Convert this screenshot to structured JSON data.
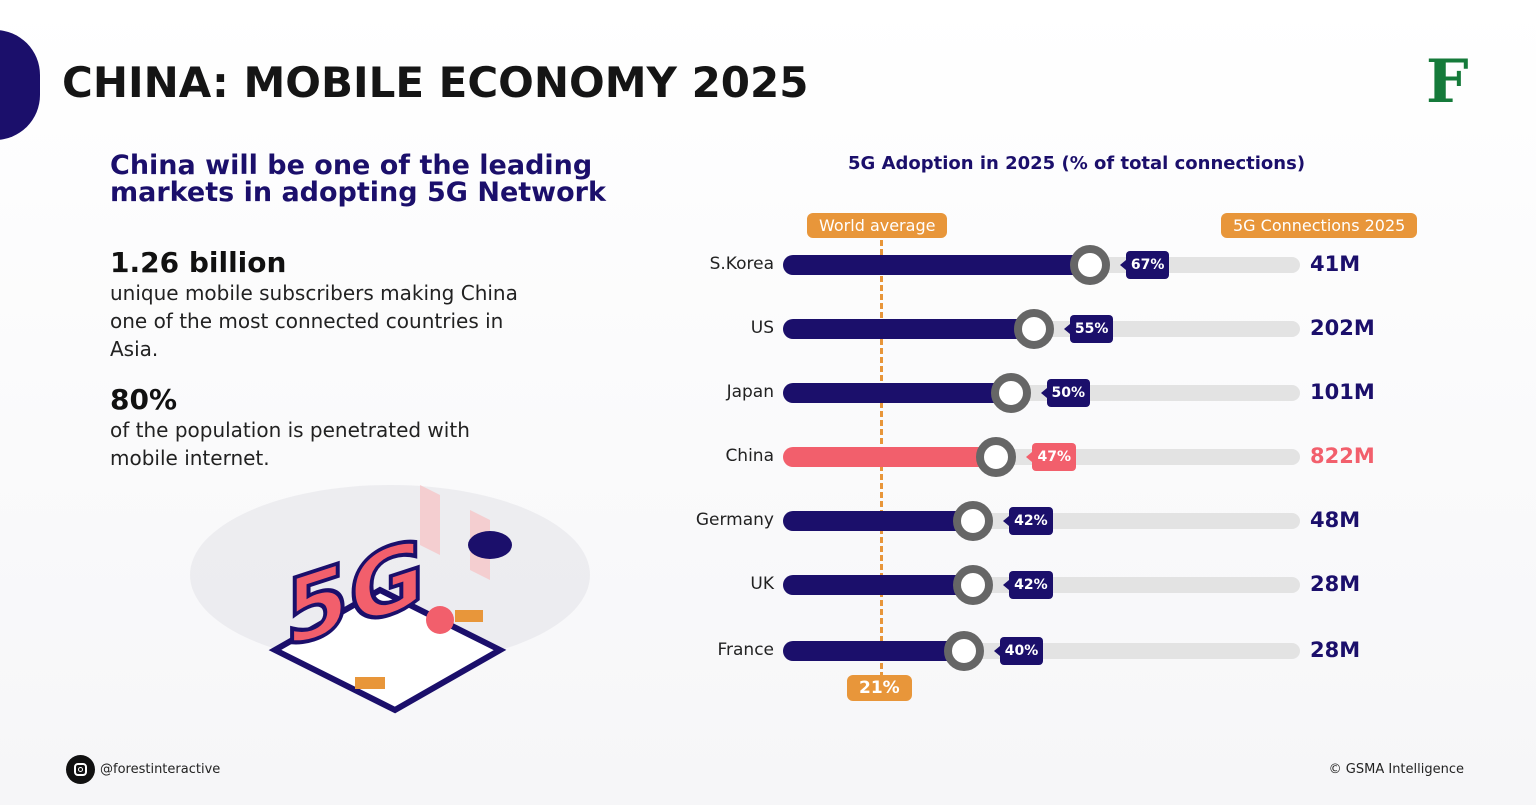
{
  "header": {
    "title": "CHINA: MOBILE ECONOMY 2025",
    "logo_text": "F"
  },
  "left": {
    "subtitle": "China will be one of the leading markets in adopting 5G Network",
    "stats": [
      {
        "value": "1.26 billion",
        "text": "unique mobile subscribers making China one of the most connected countries in Asia."
      },
      {
        "value": "80%",
        "text": "of the population is penetrated with mobile internet."
      }
    ],
    "illustration_text": "5G"
  },
  "chart_data": {
    "type": "bar",
    "title": "5G Adoption in 2025 (% of total connections)",
    "categories": [
      "S.Korea",
      "US",
      "Japan",
      "China",
      "Germany",
      "UK",
      "France"
    ],
    "values": [
      67,
      55,
      50,
      47,
      42,
      42,
      40
    ],
    "value_labels": [
      "67%",
      "55%",
      "50%",
      "47%",
      "42%",
      "42%",
      "40%"
    ],
    "connections_header": "5G Connections 2025",
    "connections": [
      "41M",
      "202M",
      "101M",
      "822M",
      "48M",
      "28M",
      "28M"
    ],
    "reference_line": {
      "label": "World average",
      "value": 21,
      "value_label": "21%"
    },
    "highlight": "China",
    "colors": {
      "bar": "#1b0f6b",
      "highlight": "#f25f6c",
      "reference": "#e8963a",
      "track": "#e3e3e3"
    }
  },
  "footer": {
    "handle": "@forestinteractive",
    "source": "© GSMA Intelligence"
  }
}
